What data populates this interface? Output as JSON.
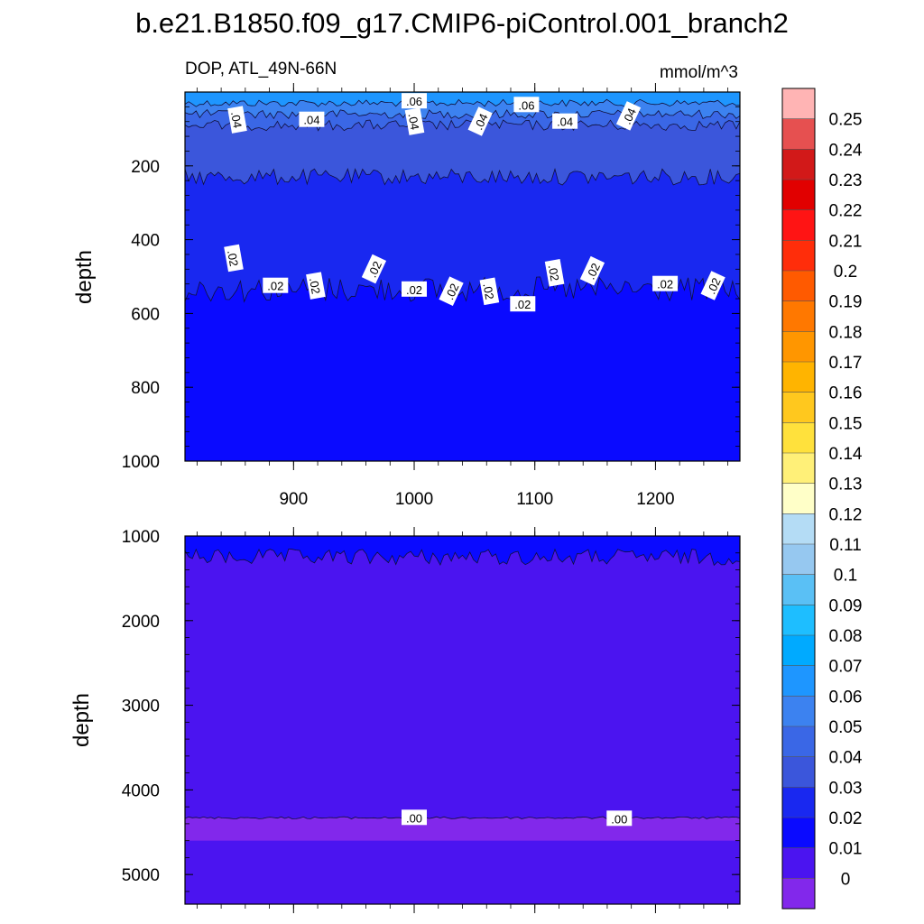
{
  "title": "b.e21.B1850.f09_g17.CMIP6-piControl.001_branch2",
  "chart_data": [
    {
      "type": "contour",
      "panel": "upper",
      "left_label": "DOP, ATL_49N-66N",
      "right_label": "mmol/m^3",
      "ylabel": "depth",
      "xlim": [
        810,
        1270
      ],
      "ylim": [
        1000,
        0
      ],
      "y_reversed": true,
      "xticks": [
        900,
        1000,
        1100,
        1200
      ],
      "yticks": [
        200,
        400,
        600,
        800,
        1000
      ],
      "bands": [
        {
          "value_range": [
            0.06,
            0.07
          ],
          "color": "#1e96ff",
          "top_depth": 0,
          "bottom_depth": 30
        },
        {
          "value_range": [
            0.05,
            0.06
          ],
          "color": "#3c82f0",
          "top_depth": 30,
          "bottom_depth": 60
        },
        {
          "value_range": [
            0.04,
            0.05
          ],
          "color": "#3a67e6",
          "top_depth": 60,
          "bottom_depth": 90
        },
        {
          "value_range": [
            0.03,
            0.04
          ],
          "color": "#3b56db",
          "top_depth": 90,
          "bottom_depth": 230
        },
        {
          "value_range": [
            0.02,
            0.03
          ],
          "color": "#1928f0",
          "top_depth": 230,
          "bottom_depth": 535
        },
        {
          "value_range": [
            0.01,
            0.02
          ],
          "color": "#0a0aff",
          "top_depth": 535,
          "bottom_depth": 1000
        }
      ],
      "contour_labels": [
        {
          "text": ".06",
          "x": 1000,
          "depth": 25
        },
        {
          "text": ".06",
          "x": 1093,
          "depth": 35
        },
        {
          "text": ".04",
          "x": 853,
          "depth": 75
        },
        {
          "text": ".04",
          "x": 915,
          "depth": 75
        },
        {
          "text": ".04",
          "x": 1000,
          "depth": 80
        },
        {
          "text": ".04",
          "x": 1055,
          "depth": 80
        },
        {
          "text": ".04",
          "x": 1125,
          "depth": 80
        },
        {
          "text": ".04",
          "x": 1178,
          "depth": 65
        },
        {
          "text": ".02",
          "x": 850,
          "depth": 450
        },
        {
          "text": ".02",
          "x": 885,
          "depth": 525
        },
        {
          "text": ".02",
          "x": 918,
          "depth": 525
        },
        {
          "text": ".02",
          "x": 967,
          "depth": 480
        },
        {
          "text": ".02",
          "x": 1000,
          "depth": 535
        },
        {
          "text": ".02",
          "x": 1031,
          "depth": 540
        },
        {
          "text": ".02",
          "x": 1062,
          "depth": 540
        },
        {
          "text": ".02",
          "x": 1090,
          "depth": 575
        },
        {
          "text": ".02",
          "x": 1116,
          "depth": 490
        },
        {
          "text": ".02",
          "x": 1148,
          "depth": 485
        },
        {
          "text": ".02",
          "x": 1208,
          "depth": 520
        },
        {
          "text": ".02",
          "x": 1248,
          "depth": 525
        }
      ]
    },
    {
      "type": "contour",
      "panel": "lower",
      "ylabel": "depth",
      "xlim": [
        810,
        1270
      ],
      "ylim": [
        5350,
        1000
      ],
      "y_reversed": true,
      "yticks": [
        1000,
        2000,
        3000,
        4000,
        5000
      ],
      "bands": [
        {
          "value_range": [
            0.01,
            0.02
          ],
          "color": "#0a0aff",
          "top_depth": 1000,
          "bottom_depth": 1250
        },
        {
          "value_range": [
            0.0,
            0.01
          ],
          "color": "#4b14f0",
          "top_depth": 1250,
          "bottom_depth": 4330
        },
        {
          "value_range": [
            -0.01,
            0.0
          ],
          "color": "#8228eb",
          "top_depth": 4330,
          "bottom_depth": 4600
        }
      ],
      "no_data_below_depth": 4600,
      "contour_labels": [
        {
          "text": ".00",
          "x": 1000,
          "depth": 4330
        },
        {
          "text": ".00",
          "x": 1170,
          "depth": 4340
        }
      ]
    }
  ],
  "colorbar": {
    "labels": [
      "0.25",
      "0.24",
      "0.23",
      "0.22",
      "0.21",
      "0.2",
      "0.19",
      "0.18",
      "0.17",
      "0.16",
      "0.15",
      "0.14",
      "0.13",
      "0.12",
      "0.11",
      "0.1",
      "0.09",
      "0.08",
      "0.07",
      "0.06",
      "0.05",
      "0.04",
      "0.03",
      "0.02",
      "0.01",
      "0"
    ],
    "colors": [
      "#ffb4b4",
      "#e65050",
      "#d21919",
      "#e10000",
      "#ff1414",
      "#ff2d0a",
      "#ff5a00",
      "#ff7800",
      "#ff9600",
      "#ffb400",
      "#ffc81e",
      "#ffe13c",
      "#fff078",
      "#ffffc8",
      "#b4dcf5",
      "#96c8f0",
      "#5ac0f5",
      "#1ebeff",
      "#00aaff",
      "#1e96ff",
      "#3c82f0",
      "#3a67e6",
      "#3b56db",
      "#1928f0",
      "#0a0aff",
      "#4b14f0",
      "#8228eb"
    ]
  }
}
